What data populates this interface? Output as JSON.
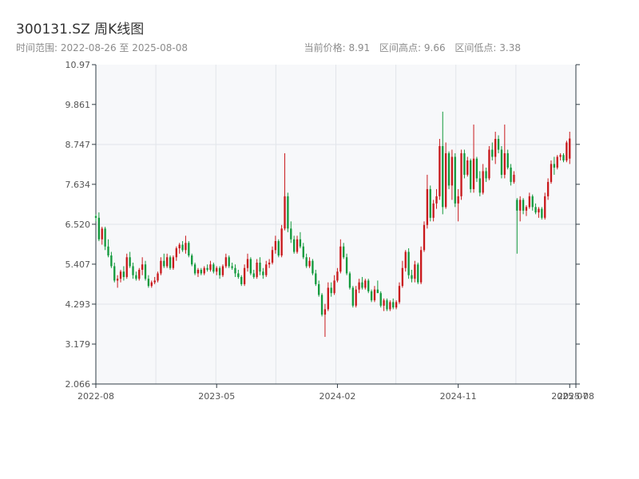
{
  "header": {
    "title": "300131.SZ 周K线图",
    "range_text": "时间范围: 2022-08-26 至 2025-08-08",
    "current_price": "当前价格: 8.91",
    "range_high": "区间高点: 9.66",
    "range_low": "区间低点: 3.38"
  },
  "colors": {
    "up": "#c9191c",
    "down": "#139a3d",
    "plot_bg": "#f7f8fa",
    "grid": "#e2e5ea",
    "axis": "#2f3b44"
  },
  "chart_data": {
    "type": "candlestick",
    "title": "300131.SZ 周K线图",
    "y_ticks": [
      "2.066",
      "3.179",
      "4.293",
      "5.407",
      "6.520",
      "7.634",
      "8.747",
      "9.861",
      "10.97"
    ],
    "ylim": [
      2.066,
      10.97
    ],
    "x_ticks": [
      {
        "label": "2022-08",
        "week": 0
      },
      {
        "label": "2023-05",
        "week": 39
      },
      {
        "label": "2024-02",
        "week": 78
      },
      {
        "label": "2024-11",
        "week": 117
      },
      {
        "label": "2025-07",
        "week": 153
      },
      {
        "label": "2025-08",
        "week": 155
      }
    ],
    "weeks_total": 156,
    "candles": [
      [
        6.75,
        6.8,
        6.6,
        6.7
      ],
      [
        6.7,
        6.85,
        6.05,
        6.1
      ],
      [
        6.1,
        6.45,
        5.95,
        6.4
      ],
      [
        6.4,
        6.45,
        5.8,
        5.9
      ],
      [
        5.9,
        6.1,
        5.6,
        5.65
      ],
      [
        5.65,
        5.75,
        5.3,
        5.35
      ],
      [
        5.35,
        5.45,
        4.9,
        4.95
      ],
      [
        4.95,
        5.1,
        4.75,
        5.0
      ],
      [
        5.0,
        5.25,
        4.9,
        5.2
      ],
      [
        5.2,
        5.35,
        4.95,
        5.05
      ],
      [
        5.05,
        5.7,
        5.0,
        5.6
      ],
      [
        5.6,
        5.75,
        5.3,
        5.35
      ],
      [
        5.35,
        5.45,
        5.0,
        5.1
      ],
      [
        5.1,
        5.2,
        4.95,
        5.0
      ],
      [
        5.0,
        5.3,
        4.95,
        5.25
      ],
      [
        5.25,
        5.6,
        5.1,
        5.4
      ],
      [
        5.4,
        5.5,
        4.95,
        5.0
      ],
      [
        5.0,
        5.1,
        4.75,
        4.8
      ],
      [
        4.8,
        4.95,
        4.75,
        4.9
      ],
      [
        4.9,
        5.05,
        4.85,
        4.95
      ],
      [
        4.95,
        5.2,
        4.9,
        5.15
      ],
      [
        5.15,
        5.6,
        5.1,
        5.5
      ],
      [
        5.5,
        5.7,
        5.3,
        5.35
      ],
      [
        5.35,
        5.7,
        5.3,
        5.6
      ],
      [
        5.6,
        5.65,
        5.25,
        5.3
      ],
      [
        5.3,
        5.65,
        5.25,
        5.6
      ],
      [
        5.6,
        5.9,
        5.5,
        5.85
      ],
      [
        5.85,
        6.0,
        5.7,
        5.95
      ],
      [
        5.95,
        6.05,
        5.75,
        5.8
      ],
      [
        5.8,
        6.2,
        5.7,
        6.0
      ],
      [
        6.0,
        6.05,
        5.6,
        5.65
      ],
      [
        5.65,
        5.7,
        5.35,
        5.4
      ],
      [
        5.4,
        5.45,
        5.1,
        5.15
      ],
      [
        5.15,
        5.3,
        5.05,
        5.25
      ],
      [
        5.25,
        5.3,
        5.1,
        5.15
      ],
      [
        5.15,
        5.35,
        5.1,
        5.3
      ],
      [
        5.3,
        5.4,
        5.2,
        5.25
      ],
      [
        5.25,
        5.5,
        5.2,
        5.4
      ],
      [
        5.4,
        5.45,
        5.15,
        5.2
      ],
      [
        5.2,
        5.35,
        5.1,
        5.3
      ],
      [
        5.3,
        5.35,
        5.0,
        5.1
      ],
      [
        5.1,
        5.4,
        5.05,
        5.35
      ],
      [
        5.35,
        5.7,
        5.3,
        5.6
      ],
      [
        5.6,
        5.65,
        5.3,
        5.35
      ],
      [
        5.35,
        5.45,
        5.25,
        5.3
      ],
      [
        5.3,
        5.4,
        5.05,
        5.15
      ],
      [
        5.15,
        5.25,
        5.0,
        5.05
      ],
      [
        5.05,
        5.1,
        4.8,
        4.85
      ],
      [
        4.85,
        5.4,
        4.8,
        5.3
      ],
      [
        5.3,
        5.7,
        5.2,
        5.55
      ],
      [
        5.55,
        5.6,
        5.1,
        5.15
      ],
      [
        5.15,
        5.25,
        5.0,
        5.05
      ],
      [
        5.05,
        5.55,
        5.0,
        5.45
      ],
      [
        5.45,
        5.6,
        5.1,
        5.2
      ],
      [
        5.2,
        5.3,
        5.0,
        5.1
      ],
      [
        5.1,
        5.5,
        5.05,
        5.4
      ],
      [
        5.4,
        5.55,
        5.3,
        5.45
      ],
      [
        5.45,
        5.9,
        5.4,
        5.8
      ],
      [
        5.8,
        6.2,
        5.7,
        6.05
      ],
      [
        6.05,
        6.1,
        5.6,
        5.65
      ],
      [
        5.65,
        6.5,
        5.6,
        6.4
      ],
      [
        6.4,
        8.5,
        6.35,
        7.3
      ],
      [
        7.3,
        7.4,
        6.3,
        6.4
      ],
      [
        6.4,
        6.6,
        6.0,
        6.1
      ],
      [
        6.1,
        6.2,
        5.7,
        5.75
      ],
      [
        5.75,
        6.2,
        5.7,
        6.1
      ],
      [
        6.1,
        6.3,
        5.85,
        5.9
      ],
      [
        5.9,
        6.0,
        5.55,
        5.6
      ],
      [
        5.6,
        5.7,
        5.3,
        5.35
      ],
      [
        5.35,
        5.6,
        5.3,
        5.5
      ],
      [
        5.5,
        5.55,
        5.1,
        5.15
      ],
      [
        5.15,
        5.25,
        4.8,
        4.85
      ],
      [
        4.85,
        4.95,
        4.5,
        4.55
      ],
      [
        4.55,
        4.6,
        3.95,
        4.0
      ],
      [
        4.0,
        4.3,
        3.38,
        4.15
      ],
      [
        4.15,
        4.9,
        4.1,
        4.75
      ],
      [
        4.75,
        4.9,
        4.5,
        4.6
      ],
      [
        4.6,
        5.1,
        4.55,
        4.95
      ],
      [
        4.95,
        5.3,
        4.9,
        5.2
      ],
      [
        5.2,
        6.1,
        5.15,
        5.9
      ],
      [
        5.9,
        6.0,
        5.55,
        5.6
      ],
      [
        5.6,
        5.7,
        5.1,
        5.15
      ],
      [
        5.15,
        5.2,
        4.7,
        4.75
      ],
      [
        4.75,
        4.8,
        4.2,
        4.25
      ],
      [
        4.25,
        4.8,
        4.2,
        4.7
      ],
      [
        4.7,
        5.0,
        4.6,
        4.9
      ],
      [
        4.9,
        5.05,
        4.7,
        4.75
      ],
      [
        4.75,
        5.0,
        4.7,
        4.95
      ],
      [
        4.95,
        5.0,
        4.6,
        4.65
      ],
      [
        4.65,
        4.7,
        4.35,
        4.4
      ],
      [
        4.4,
        4.8,
        4.35,
        4.7
      ],
      [
        4.7,
        4.95,
        4.65,
        4.6
      ],
      [
        4.6,
        4.65,
        4.2,
        4.25
      ],
      [
        4.25,
        4.45,
        4.1,
        4.4
      ],
      [
        4.4,
        4.45,
        4.1,
        4.15
      ],
      [
        4.15,
        4.4,
        4.1,
        4.35
      ],
      [
        4.35,
        4.45,
        4.15,
        4.2
      ],
      [
        4.2,
        4.4,
        4.15,
        4.35
      ],
      [
        4.35,
        4.9,
        4.3,
        4.8
      ],
      [
        4.8,
        5.5,
        4.75,
        5.3
      ],
      [
        5.3,
        5.8,
        5.2,
        5.75
      ],
      [
        5.75,
        5.85,
        5.0,
        5.1
      ],
      [
        5.1,
        5.25,
        4.9,
        5.0
      ],
      [
        5.0,
        5.5,
        4.9,
        5.4
      ],
      [
        5.4,
        5.45,
        4.85,
        4.9
      ],
      [
        4.9,
        5.9,
        4.85,
        5.8
      ],
      [
        5.8,
        6.6,
        5.75,
        6.5
      ],
      [
        6.5,
        7.9,
        6.4,
        7.5
      ],
      [
        7.5,
        7.6,
        6.6,
        6.7
      ],
      [
        6.7,
        7.2,
        6.6,
        7.1
      ],
      [
        7.1,
        7.5,
        6.95,
        7.3
      ],
      [
        7.3,
        8.9,
        7.2,
        8.7
      ],
      [
        8.7,
        9.66,
        6.8,
        7.0
      ],
      [
        7.0,
        8.8,
        6.95,
        8.5
      ],
      [
        8.5,
        8.55,
        7.5,
        7.6
      ],
      [
        7.6,
        8.6,
        7.2,
        8.4
      ],
      [
        8.4,
        8.5,
        7.0,
        7.1
      ],
      [
        7.1,
        7.5,
        6.6,
        7.3
      ],
      [
        7.3,
        8.6,
        7.2,
        8.5
      ],
      [
        8.5,
        8.6,
        7.8,
        7.9
      ],
      [
        7.9,
        8.4,
        7.85,
        8.3
      ],
      [
        8.3,
        8.35,
        7.4,
        7.5
      ],
      [
        7.5,
        9.3,
        7.4,
        8.35
      ],
      [
        8.35,
        8.4,
        7.7,
        7.8
      ],
      [
        7.8,
        8.0,
        7.3,
        7.4
      ],
      [
        7.4,
        8.2,
        7.35,
        8.0
      ],
      [
        8.0,
        8.1,
        7.7,
        7.8
      ],
      [
        7.8,
        8.7,
        7.75,
        8.6
      ],
      [
        8.6,
        8.8,
        8.3,
        8.4
      ],
      [
        8.4,
        9.1,
        8.2,
        8.9
      ],
      [
        8.9,
        9.0,
        8.5,
        8.6
      ],
      [
        8.6,
        8.7,
        7.8,
        7.9
      ],
      [
        7.9,
        9.3,
        7.8,
        8.5
      ],
      [
        8.5,
        8.6,
        8.05,
        8.1
      ],
      [
        8.1,
        8.2,
        7.6,
        7.7
      ],
      [
        7.7,
        8.0,
        7.65,
        7.9
      ],
      [
        7.2,
        7.25,
        5.7,
        6.9
      ],
      [
        6.9,
        7.3,
        6.6,
        7.2
      ],
      [
        7.2,
        7.25,
        6.8,
        6.9
      ],
      [
        6.9,
        7.05,
        6.75,
        7.0
      ],
      [
        7.0,
        7.4,
        6.95,
        7.3
      ],
      [
        7.3,
        7.35,
        6.9,
        7.0
      ],
      [
        7.0,
        7.1,
        6.8,
        6.85
      ],
      [
        6.85,
        7.0,
        6.7,
        6.95
      ],
      [
        6.95,
        7.0,
        6.65,
        6.7
      ],
      [
        6.7,
        7.4,
        6.65,
        7.3
      ],
      [
        7.3,
        7.8,
        7.2,
        7.7
      ],
      [
        7.7,
        8.3,
        7.65,
        8.2
      ],
      [
        8.2,
        8.4,
        7.9,
        8.1
      ],
      [
        8.1,
        8.45,
        8.05,
        8.4
      ],
      [
        8.4,
        8.5,
        8.3,
        8.45
      ],
      [
        8.45,
        8.5,
        8.25,
        8.3
      ],
      [
        8.3,
        8.85,
        8.25,
        8.8
      ],
      [
        8.35,
        9.1,
        8.2,
        8.91
      ]
    ]
  }
}
